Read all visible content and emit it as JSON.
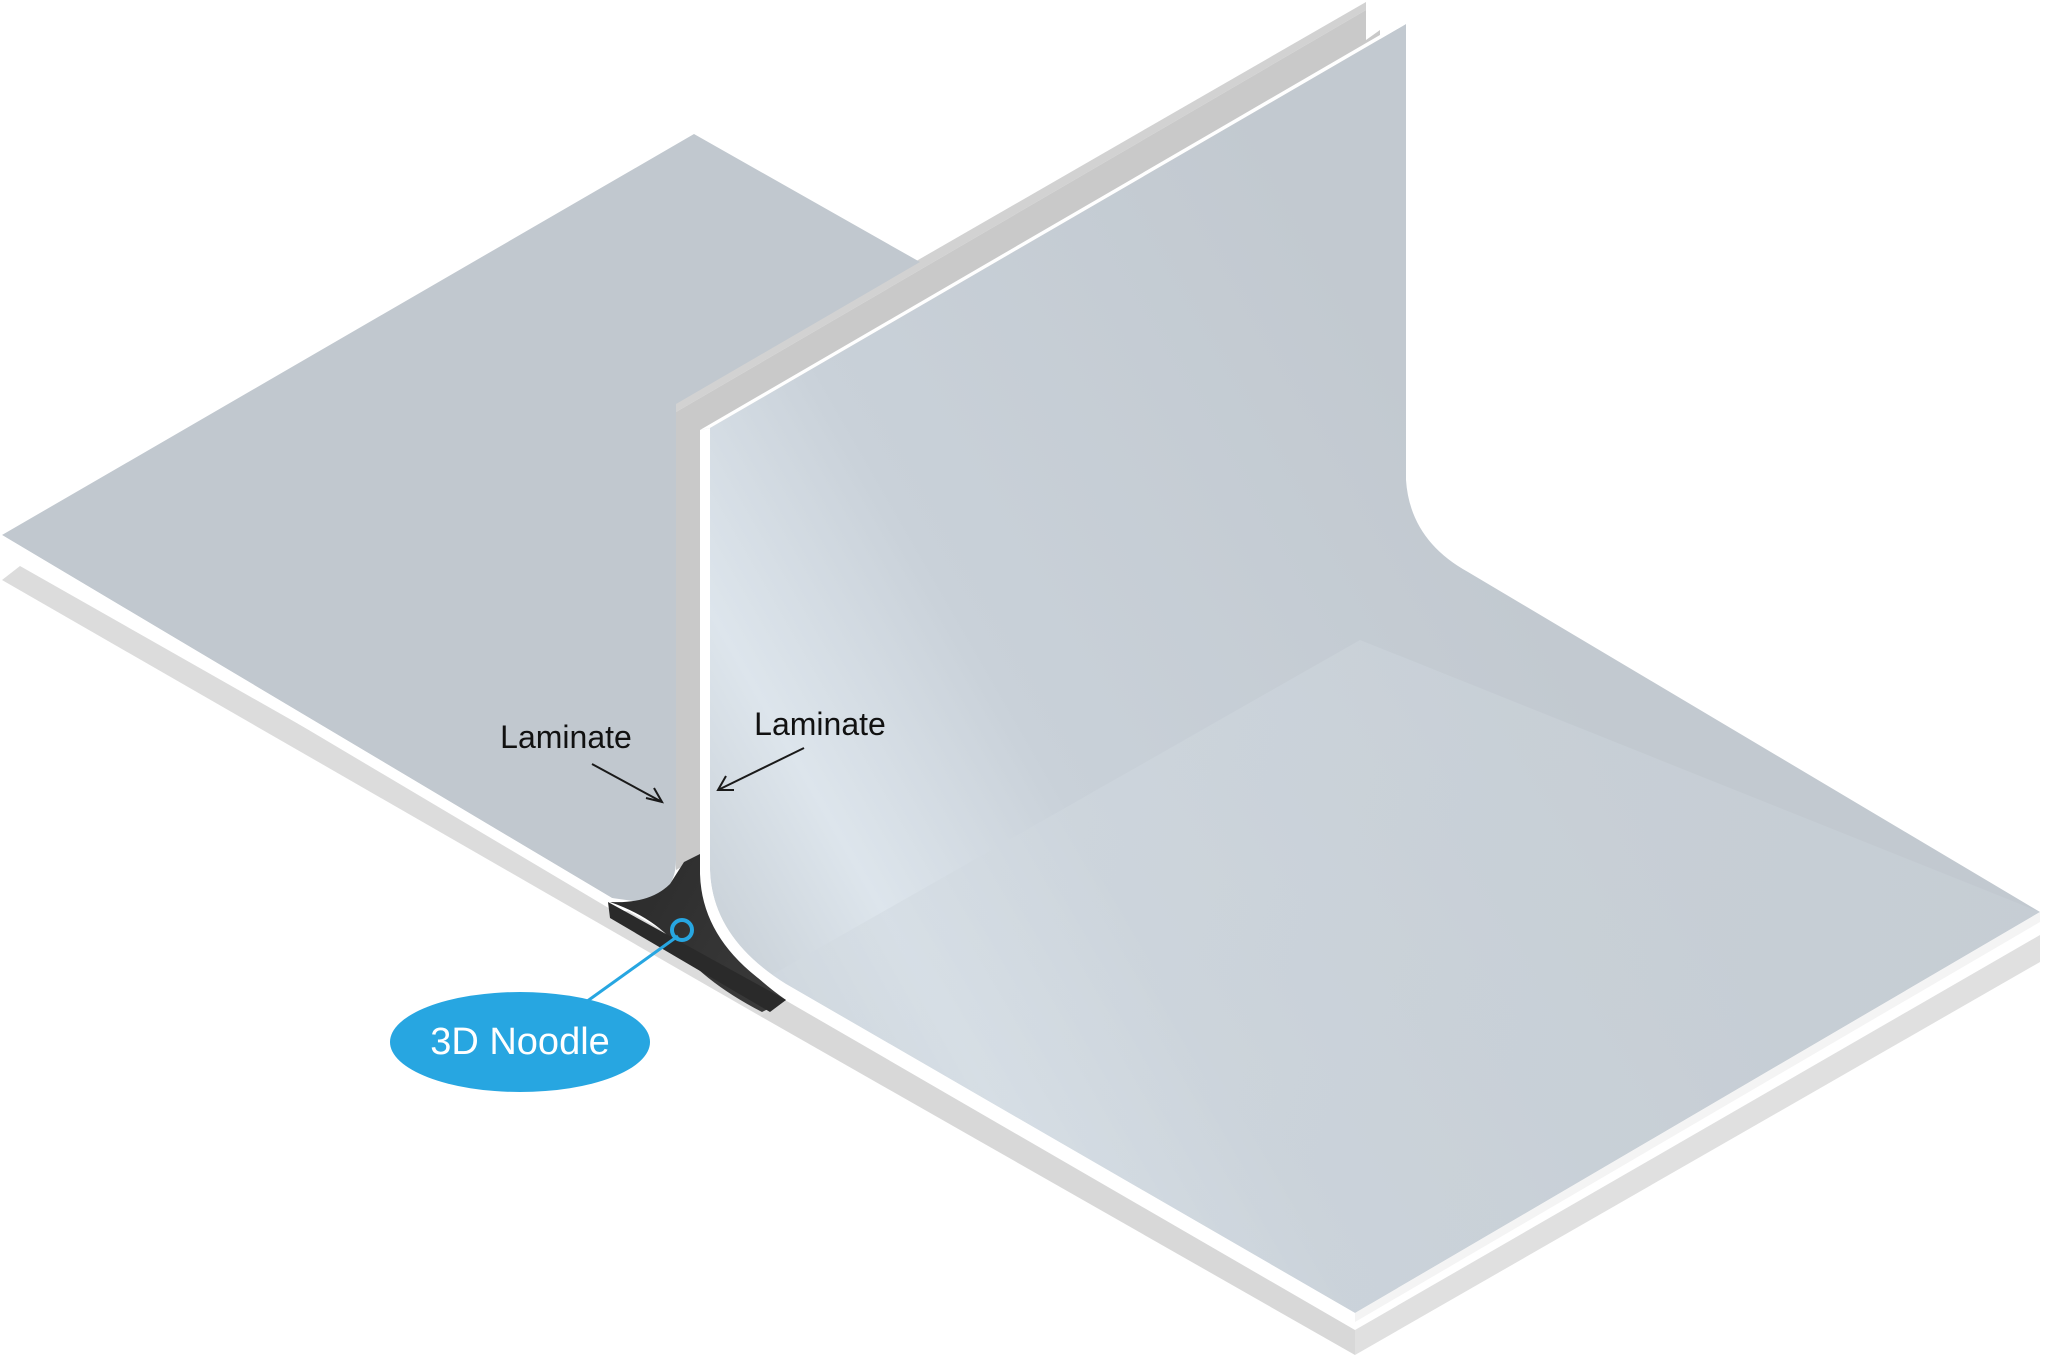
{
  "labels": {
    "laminate_left": "Laminate",
    "laminate_right": "Laminate",
    "noodle": "3D Noodle"
  },
  "colors": {
    "laminate_face": "#c1c8cf",
    "laminate_face_light": "#ccd4db",
    "laminate_highlight": "#dde5ec",
    "laminate_edge": "#d0d0d0",
    "laminate_edge_dark": "#c6c6c6",
    "base_plate": "#dcdcdc",
    "noodle": "#333333",
    "callout": "#27a6e1",
    "callout_text": "#ffffff",
    "arrow": "#1a1a1a"
  }
}
